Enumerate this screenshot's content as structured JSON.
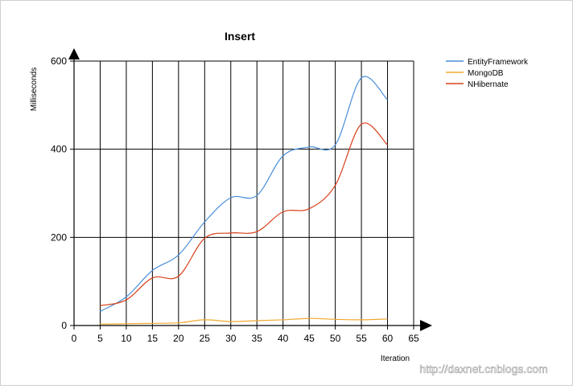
{
  "chart_data": {
    "type": "line",
    "title": "Insert",
    "xlabel": "Iteration",
    "ylabel": "Milliseconds",
    "xlim": [
      0,
      65
    ],
    "ylim": [
      0,
      600
    ],
    "xticks": [
      "0",
      "5",
      "10",
      "15",
      "20",
      "25",
      "30",
      "35",
      "40",
      "45",
      "50",
      "55",
      "60",
      "65"
    ],
    "yticks": [
      "0",
      "200",
      "400",
      "600"
    ],
    "grid": true,
    "legend_position": "top-right",
    "x": [
      5,
      10,
      15,
      20,
      25,
      30,
      35,
      40,
      45,
      50,
      55,
      60
    ],
    "series": [
      {
        "name": "EntityFramework",
        "color": "#4a8fd8",
        "values": [
          32,
          65,
          125,
          160,
          235,
          290,
          295,
          385,
          405,
          410,
          562,
          512
        ]
      },
      {
        "name": "MongoDB",
        "color": "#f0a830",
        "values": [
          3,
          4,
          5,
          6,
          13,
          9,
          11,
          13,
          16,
          14,
          13,
          15
        ]
      },
      {
        "name": "NHibernate",
        "color": "#d8401a",
        "values": [
          45,
          58,
          108,
          112,
          198,
          210,
          213,
          258,
          265,
          318,
          457,
          410
        ]
      }
    ]
  },
  "watermark": "http://daxnet.cnblogs.com"
}
